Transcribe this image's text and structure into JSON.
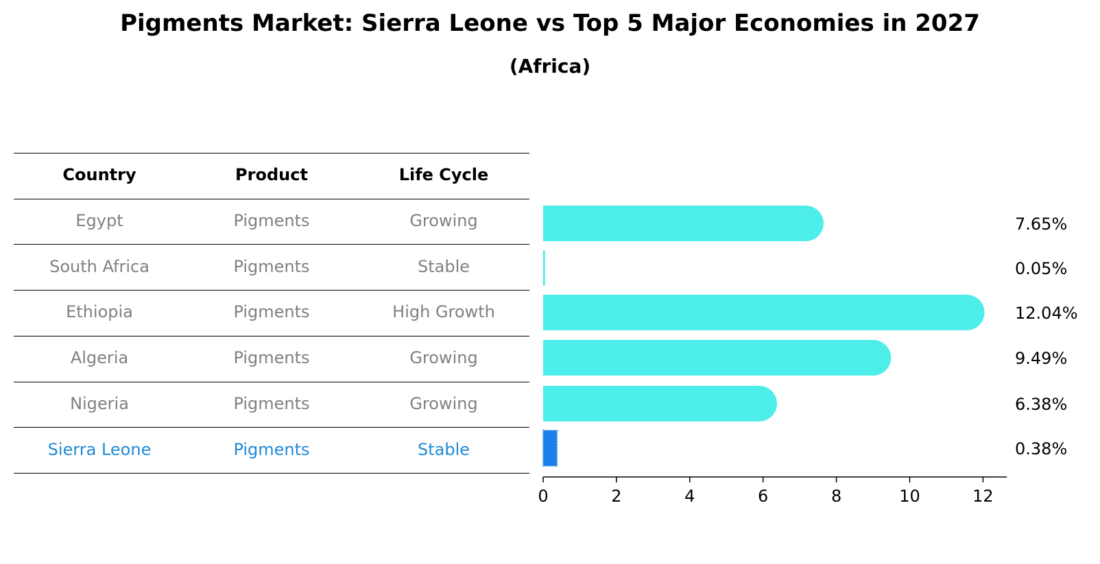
{
  "title": "Pigments Market: Sierra Leone vs Top 5 Major Economies in 2027",
  "subtitle": "(Africa)",
  "table": {
    "headers": [
      "Country",
      "Product",
      "Life Cycle"
    ],
    "rows": [
      [
        "Egypt",
        "Pigments",
        "Growing"
      ],
      [
        "South Africa",
        "Pigments",
        "Stable"
      ],
      [
        "Ethiopia",
        "Pigments",
        "High Growth"
      ],
      [
        "Algeria",
        "Pigments",
        "Growing"
      ],
      [
        "Nigeria",
        "Pigments",
        "Growing"
      ],
      [
        "Sierra Leone",
        "Pigments",
        "Stable"
      ]
    ],
    "highlight_row": 5
  },
  "colors": {
    "bar": "#4deeea",
    "highlight_bar": "#1a7fe8",
    "highlight_text": "#1f8bd6",
    "body_text": "#808080"
  },
  "chart_data": {
    "type": "bar",
    "orientation": "horizontal",
    "categories": [
      "Egypt",
      "South Africa",
      "Ethiopia",
      "Algeria",
      "Nigeria",
      "Sierra Leone"
    ],
    "values": [
      7.65,
      0.05,
      12.04,
      9.49,
      6.38,
      0.38
    ],
    "labels": [
      "7.65%",
      "0.05%",
      "12.04%",
      "9.49%",
      "6.38%",
      "0.38%"
    ],
    "xticks": [
      0,
      2,
      4,
      6,
      8,
      10,
      12
    ],
    "xlim": [
      0,
      12.65
    ],
    "highlight_index": 5
  }
}
